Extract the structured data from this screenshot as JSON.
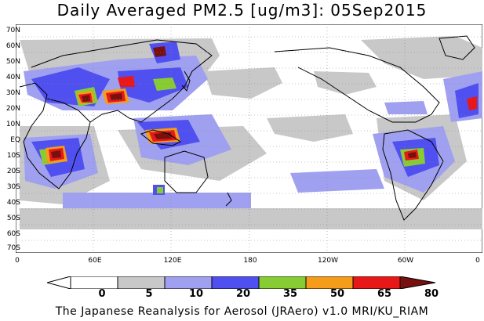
{
  "title": "Daily Averaged PM2.5 [ug/m3]: 05Sep2015",
  "lat_labels": [
    "70N",
    "60N",
    "50N",
    "40N",
    "30N",
    "20N",
    "10N",
    "EQ",
    "10S",
    "20S",
    "30S",
    "40S",
    "50S",
    "60S",
    "70S"
  ],
  "lon_labels": [
    "0",
    "60E",
    "120E",
    "180",
    "120W",
    "60W",
    "0"
  ],
  "legend": {
    "labels": [
      "0",
      "5",
      "10",
      "20",
      "35",
      "50",
      "65",
      "80"
    ],
    "colors": [
      "#ffffff",
      "#c8c8c8",
      "#a0a0f0",
      "#5050f0",
      "#88cc33",
      "#f59c1a",
      "#e81818",
      "#781010"
    ]
  },
  "credit": "The Japanese Reanalysis for Aerosol (JRAero) v1.0 MRI/KU_RIAM"
}
